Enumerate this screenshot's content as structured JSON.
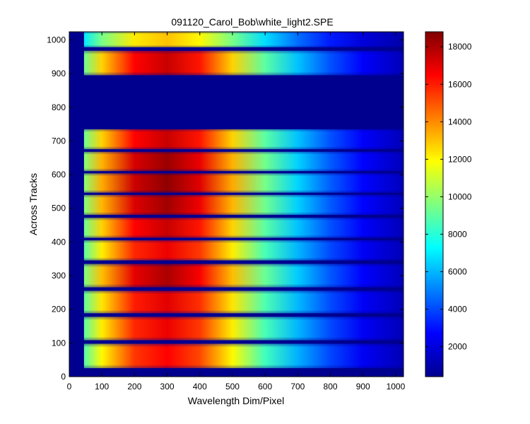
{
  "chart_data": {
    "type": "heatmap",
    "title": "091120_Carol_Bob\\white_light2.SPE",
    "xlabel": "Wavelength Dim/Pixel",
    "ylabel": "Across Tracks",
    "xlim": [
      0,
      1024
    ],
    "ylim": [
      0,
      1024
    ],
    "xticks": [
      0,
      100,
      200,
      300,
      400,
      500,
      600,
      700,
      800,
      900,
      1000
    ],
    "yticks": [
      0,
      100,
      200,
      300,
      400,
      500,
      600,
      700,
      800,
      900,
      1000
    ],
    "colorbar": {
      "colormap": "jet",
      "range": [
        400,
        18800
      ],
      "ticks": [
        2000,
        4000,
        6000,
        8000,
        10000,
        12000,
        14000,
        16000,
        18000
      ]
    },
    "x_signal_start": 45,
    "x_peak": 300,
    "x_signal_end": 1024,
    "background_level": 400,
    "tracks": [
      {
        "y_bottom": 25,
        "y_top": 98,
        "peak": 16500
      },
      {
        "y_bottom": 108,
        "y_top": 178,
        "peak": 16800
      },
      {
        "y_bottom": 188,
        "y_top": 255,
        "peak": 17000
      },
      {
        "y_bottom": 265,
        "y_top": 335,
        "peak": 18000
      },
      {
        "y_bottom": 345,
        "y_top": 405,
        "peak": 16800
      },
      {
        "y_bottom": 412,
        "y_top": 472,
        "peak": 17500
      },
      {
        "y_bottom": 480,
        "y_top": 540,
        "peak": 18200
      },
      {
        "y_bottom": 546,
        "y_top": 604,
        "peak": 18500
      },
      {
        "y_bottom": 610,
        "y_top": 668,
        "peak": 18300
      },
      {
        "y_bottom": 675,
        "y_top": 735,
        "peak": 17500
      },
      {
        "y_bottom": 895,
        "y_top": 968,
        "peak": 17500
      },
      {
        "y_bottom": 978,
        "y_top": 1024,
        "peak": 13000
      }
    ]
  }
}
